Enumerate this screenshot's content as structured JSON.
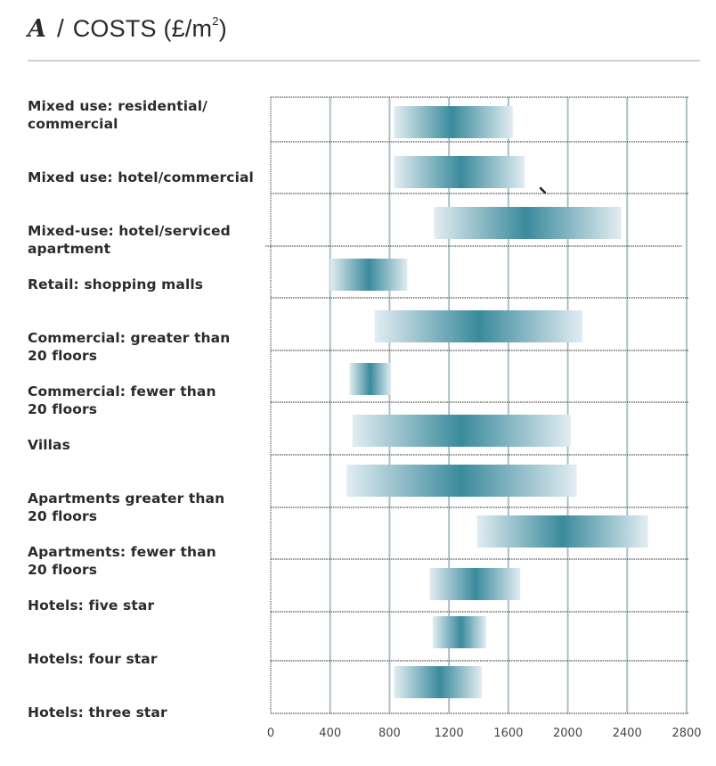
{
  "header": {
    "letter": "A",
    "title": "COSTS (£/m",
    "superscript": "2",
    "title_close": ")"
  },
  "chart_data": {
    "type": "bar",
    "subtype": "horizontal-range-gradient",
    "title": "A / COSTS (£/m²)",
    "xlabel": "",
    "ylabel": "",
    "xlim": [
      0,
      2800
    ],
    "xticks": [
      0,
      400,
      800,
      1200,
      1600,
      2000,
      2400,
      2800
    ],
    "xtick_labels": [
      "0",
      "400",
      "800",
      "1200",
      "1600",
      "2000",
      "2400",
      "2800"
    ],
    "grid": true,
    "legend": "none",
    "colors": {
      "peak": "#3a8a9c",
      "edge": "#e2edf2",
      "grid": "#aebfc6",
      "divider": "#555555"
    },
    "categories": [
      "Mixed use: residential/ commercial",
      "Mixed use: hotel/commercial",
      "Mixed-use: hotel/serviced apartment",
      "Retail: shopping malls",
      "Commercial: greater than 20 floors",
      "Commercial: fewer than 20 floors",
      "Villas",
      "Apartments greater than 20 floors",
      "Apartments: fewer than 20 floors",
      "Hotels: five star",
      "Hotels: four star",
      "Hotels: three star"
    ],
    "label_lines": [
      [
        "Mixed use: residential/",
        "commercial"
      ],
      [
        "Mixed use: hotel/commercial"
      ],
      [
        "Mixed-use: hotel/serviced",
        "apartment"
      ],
      [
        "Retail: shopping malls"
      ],
      [
        "Commercial: greater than",
        "20 floors"
      ],
      [
        "Commercial: fewer than",
        "20 floors"
      ],
      [
        "Villas"
      ],
      [
        "Apartments greater than",
        "20 floors"
      ],
      [
        "Apartments: fewer than",
        "20 floors"
      ],
      [
        "Hotels: five star"
      ],
      [
        "Hotels: four star"
      ],
      [
        "Hotels: three star"
      ]
    ],
    "ranges": [
      {
        "min": 830,
        "max": 1630,
        "peak": 1220
      },
      {
        "min": 830,
        "max": 1710,
        "peak": 1280
      },
      {
        "min": 1100,
        "max": 2360,
        "peak": 1720
      },
      {
        "min": 400,
        "max": 920,
        "peak": 660
      },
      {
        "min": 700,
        "max": 2100,
        "peak": 1400
      },
      {
        "min": 530,
        "max": 810,
        "peak": 670
      },
      {
        "min": 550,
        "max": 2020,
        "peak": 1280
      },
      {
        "min": 510,
        "max": 2060,
        "peak": 1280
      },
      {
        "min": 1390,
        "max": 2540,
        "peak": 1960
      },
      {
        "min": 1070,
        "max": 1680,
        "peak": 1380
      },
      {
        "min": 1090,
        "max": 1450,
        "peak": 1280
      },
      {
        "min": 830,
        "max": 1420,
        "peak": 1140
      }
    ]
  }
}
